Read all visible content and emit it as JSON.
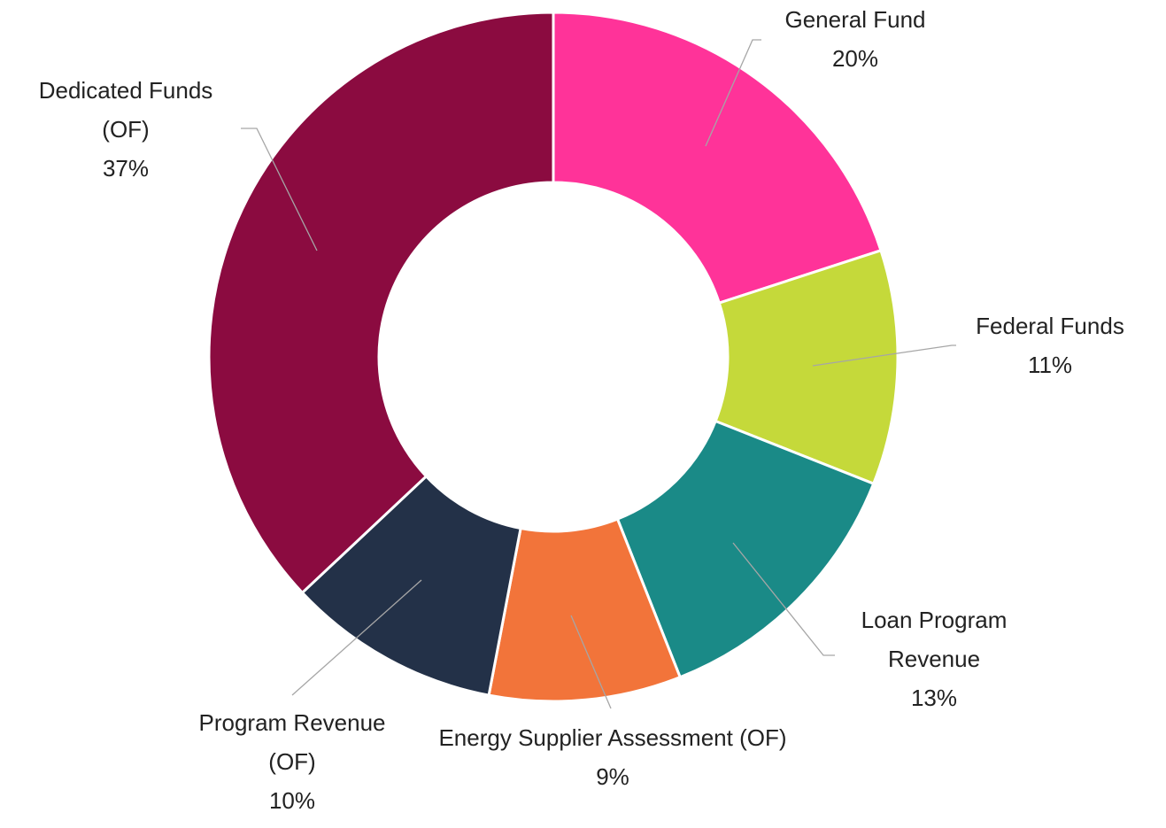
{
  "chart_data": {
    "type": "donut",
    "categories": [
      "General Fund",
      "Federal Funds",
      "Loan Program Revenue",
      "Energy Supplier Assessment (OF)",
      "Program Revenue (OF)",
      "Dedicated Funds (OF)"
    ],
    "values": [
      20,
      11,
      13,
      9,
      10,
      37
    ],
    "value_labels": [
      "20%",
      "11%",
      "13%",
      "9%",
      "10%",
      "37%"
    ],
    "colors": [
      "#ff3399",
      "#c5d93a",
      "#1a8a87",
      "#f2743a",
      "#233148",
      "#8b0b40"
    ]
  }
}
